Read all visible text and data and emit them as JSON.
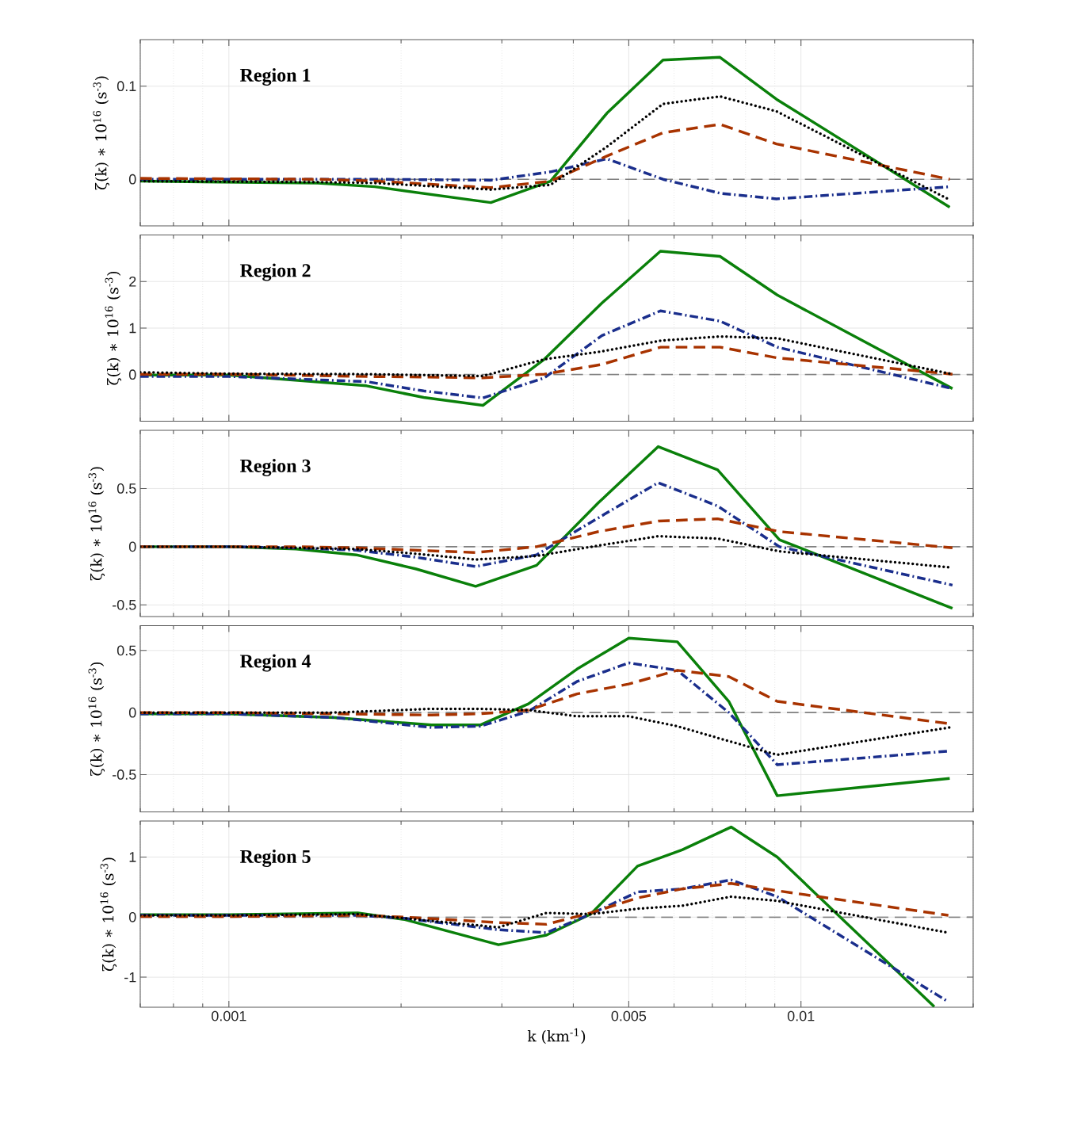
{
  "chart_data": [
    {
      "type": "line",
      "title": "Region 1",
      "ylabel": "ζ(k) ∗ 10$^{16}$ (s$^{-3}$)",
      "log": "x",
      "grid": true,
      "tick_labels": "y",
      "xlim": [
        0.0007,
        0.02
      ],
      "ylim": [
        -0.05,
        0.15
      ],
      "xticks": [
        0.001,
        0.005,
        0.01
      ],
      "yticks": [
        0,
        0.1
      ],
      "x": [
        0.0007,
        0.00143,
        0.0018,
        0.00287,
        0.00365,
        0.00458,
        0.00574,
        0.00722,
        0.00906,
        0.0182
      ],
      "ref_lines": [
        {
          "axis": "y",
          "value": 0,
          "color": "#808080",
          "line_style": "dashed"
        }
      ],
      "series": [
        {
          "color": "#0a800a",
          "line_style": "solid",
          "values": [
            -0.002,
            -0.004,
            -0.008,
            -0.025,
            -0.002,
            0.071,
            0.128,
            0.131,
            0.086,
            -0.03
          ]
        },
        {
          "color": "#1a2e8c",
          "line_style": "dashdot",
          "values": [
            0,
            0,
            0,
            -0.001,
            0.008,
            0.022,
            0,
            -0.015,
            -0.021,
            -0.008
          ]
        },
        {
          "color": "#a83300",
          "line_style": "dashed",
          "values": [
            0.001,
            0,
            -0.002,
            -0.009,
            -0.002,
            0.025,
            0.05,
            0.059,
            0.038,
            0
          ]
        },
        {
          "color": "#000000",
          "line_style": "dotted",
          "values": [
            -0.002,
            -0.003,
            -0.004,
            -0.011,
            -0.006,
            0.035,
            0.081,
            0.089,
            0.073,
            -0.022
          ]
        }
      ]
    },
    {
      "type": "line",
      "title": "Region 2",
      "ylabel": "ζ(k) ∗ 10$^{16}$ (s$^{-3}$)",
      "log": "x",
      "grid": true,
      "tick_labels": "y",
      "xlim": [
        0.0007,
        0.02
      ],
      "ylim": [
        -1,
        3
      ],
      "xticks": [
        0.001,
        0.005,
        0.01
      ],
      "yticks": [
        0,
        1,
        2
      ],
      "x": [
        0.0007,
        0.001,
        0.00174,
        0.00219,
        0.00278,
        0.00356,
        0.00449,
        0.00568,
        0.00722,
        0.00909,
        0.0184
      ],
      "ref_lines": [
        {
          "axis": "y",
          "value": 0,
          "color": "#808080",
          "line_style": "dashed"
        }
      ],
      "series": [
        {
          "color": "#0a800a",
          "line_style": "solid",
          "values": [
            -0.01,
            -0.01,
            -0.24,
            -0.49,
            -0.66,
            0.33,
            1.54,
            2.65,
            2.54,
            1.71,
            -0.3
          ]
        },
        {
          "color": "#1a2e8c",
          "line_style": "dashdot",
          "values": [
            -0.04,
            -0.04,
            -0.15,
            -0.35,
            -0.5,
            -0.07,
            0.84,
            1.37,
            1.15,
            0.59,
            -0.3
          ]
        },
        {
          "color": "#a83300",
          "line_style": "dashed",
          "values": [
            0.01,
            0.01,
            -0.04,
            -0.05,
            -0.07,
            0.01,
            0.22,
            0.59,
            0.59,
            0.36,
            0.01
          ]
        },
        {
          "color": "#000000",
          "line_style": "dotted",
          "values": [
            0.05,
            0.02,
            0.01,
            -0.01,
            -0.03,
            0.33,
            0.5,
            0.73,
            0.82,
            0.78,
            0.01
          ]
        }
      ]
    },
    {
      "type": "line",
      "title": "Region 3",
      "ylabel": "ζ(k) ∗ 10$^{16}$ (s$^{-3}$)",
      "log": "x",
      "grid": true,
      "tick_labels": "y",
      "xlim": [
        0.0007,
        0.02
      ],
      "ylim": [
        -0.6,
        1
      ],
      "xticks": [
        0.001,
        0.005,
        0.01
      ],
      "yticks": [
        -0.5,
        0,
        0.5
      ],
      "x": [
        0.0007,
        0.001,
        0.00131,
        0.00167,
        0.00212,
        0.0027,
        0.00345,
        0.00443,
        0.00563,
        0.00715,
        0.00917,
        0.0184
      ],
      "ref_lines": [
        {
          "axis": "y",
          "value": 0,
          "color": "#808080",
          "line_style": "dashed"
        }
      ],
      "series": [
        {
          "color": "#0a800a",
          "line_style": "solid",
          "values": [
            0,
            0,
            -0.02,
            -0.07,
            -0.19,
            -0.34,
            -0.16,
            0.38,
            0.86,
            0.66,
            0.06,
            -0.53
          ]
        },
        {
          "color": "#1a2e8c",
          "line_style": "dashdot",
          "values": [
            0,
            0,
            -0.01,
            -0.03,
            -0.09,
            -0.17,
            -0.07,
            0.25,
            0.55,
            0.35,
            0,
            -0.33
          ]
        },
        {
          "color": "#a83300",
          "line_style": "dashed",
          "values": [
            0,
            0,
            0,
            -0.01,
            -0.03,
            -0.05,
            0,
            0.13,
            0.22,
            0.24,
            0.13,
            -0.01
          ]
        },
        {
          "color": "#000000",
          "line_style": "dotted",
          "values": [
            0,
            0,
            -0.01,
            -0.02,
            -0.06,
            -0.11,
            -0.08,
            0.01,
            0.09,
            0.07,
            -0.04,
            -0.18
          ]
        }
      ]
    },
    {
      "type": "line",
      "title": "Region 4",
      "ylabel": "ζ(k) ∗ 10$^{16}$ (s$^{-3}$)",
      "log": "x",
      "grid": true,
      "tick_labels": "y",
      "xlim": [
        0.0007,
        0.02
      ],
      "ylim": [
        -0.8,
        0.7
      ],
      "xticks": [
        0.001,
        0.005,
        0.01
      ],
      "yticks": [
        -0.5,
        0,
        0.5
      ],
      "x": [
        0.0007,
        0.001,
        0.00153,
        0.00226,
        0.00275,
        0.00334,
        0.00406,
        0.005,
        0.00608,
        0.00748,
        0.00909,
        0.0182
      ],
      "ref_lines": [
        {
          "axis": "y",
          "value": 0,
          "color": "#808080",
          "line_style": "dashed"
        }
      ],
      "series": [
        {
          "color": "#0a800a",
          "line_style": "solid",
          "values": [
            -0.01,
            -0.01,
            -0.04,
            -0.1,
            -0.1,
            0.07,
            0.35,
            0.6,
            0.57,
            0.09,
            -0.67,
            -0.53
          ]
        },
        {
          "color": "#1a2e8c",
          "line_style": "dashdot",
          "values": [
            -0.01,
            -0.01,
            -0.04,
            -0.12,
            -0.11,
            0.01,
            0.25,
            0.4,
            0.34,
            0,
            -0.42,
            -0.31
          ]
        },
        {
          "color": "#a83300",
          "line_style": "dashed",
          "values": [
            0,
            0,
            -0.01,
            -0.02,
            -0.01,
            0.02,
            0.15,
            0.23,
            0.34,
            0.29,
            0.09,
            -0.09
          ]
        },
        {
          "color": "#000000",
          "line_style": "dotted",
          "values": [
            0,
            0,
            0,
            0.03,
            0.03,
            0.02,
            -0.03,
            -0.03,
            -0.11,
            -0.23,
            -0.34,
            -0.12
          ]
        }
      ]
    },
    {
      "type": "line",
      "title": "Region 5",
      "ylabel": "ζ(k) ∗ 10$^{16}$ (s$^{-3}$)",
      "xlabel": "k (km$^{-1}$)",
      "log": "x",
      "grid": true,
      "xlim": [
        0.0007,
        0.02
      ],
      "ylim": [
        -1.5,
        1.6
      ],
      "xticks": [
        0.001,
        0.005,
        0.01
      ],
      "yticks": [
        -1,
        0,
        1
      ],
      "x": [
        0.0007,
        0.001,
        0.00168,
        0.00203,
        0.00296,
        0.00359,
        0.00429,
        0.00518,
        0.0062,
        0.00755,
        0.00909,
        0.0181
      ],
      "ref_lines": [
        {
          "axis": "y",
          "value": 0,
          "color": "#808080",
          "line_style": "dashed"
        }
      ],
      "series": [
        {
          "color": "#0a800a",
          "line_style": "solid",
          "x": [
            0.0007,
            0.001,
            0.00168,
            0.00203,
            0.00296,
            0.00359,
            0.00429,
            0.00518,
            0.0062,
            0.00755,
            0.00909,
            0.0171
          ],
          "values": [
            0.04,
            0.04,
            0.07,
            -0.04,
            -0.46,
            -0.3,
            0.05,
            0.85,
            1.12,
            1.5,
            1.0,
            -1.49
          ]
        },
        {
          "color": "#1a2e8c",
          "line_style": "dashdot",
          "values": [
            0.03,
            0.03,
            0.03,
            -0.02,
            -0.21,
            -0.26,
            0.05,
            0.42,
            0.47,
            0.62,
            0.34,
            -1.41
          ]
        },
        {
          "color": "#a83300",
          "line_style": "dashed",
          "values": [
            0.01,
            0.01,
            0.03,
            0,
            -0.09,
            -0.12,
            0.07,
            0.32,
            0.47,
            0.56,
            0.44,
            0.03
          ]
        },
        {
          "color": "#000000",
          "line_style": "dotted",
          "values": [
            0.03,
            0.03,
            0.05,
            -0.02,
            -0.17,
            0.07,
            0.05,
            0.14,
            0.19,
            0.34,
            0.27,
            -0.26
          ]
        }
      ]
    }
  ]
}
